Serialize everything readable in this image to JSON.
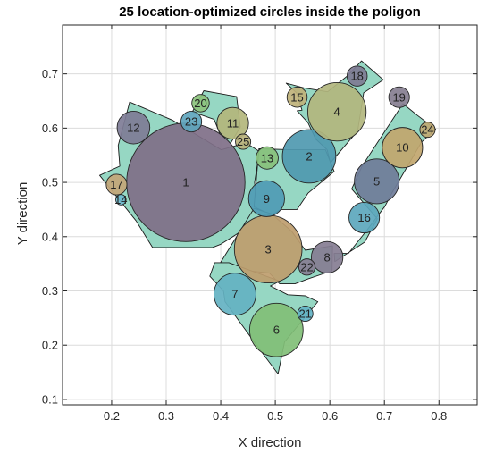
{
  "chart_data": {
    "type": "scatter",
    "title": "25 location-optimized circles inside the poligon",
    "xlabel": "X direction",
    "ylabel": "Y direction",
    "xlim": [
      0.11,
      0.87
    ],
    "ylim": [
      0.09,
      0.79
    ],
    "xticks": [
      0.2,
      0.3,
      0.4,
      0.5,
      0.6,
      0.7,
      0.8
    ],
    "yticks": [
      0.1,
      0.2,
      0.3,
      0.4,
      0.5,
      0.6,
      0.7
    ],
    "xtick_labels": [
      "0.2",
      "0.3",
      "0.4",
      "0.5",
      "0.6",
      "0.7",
      "0.8"
    ],
    "ytick_labels": [
      "0.1",
      "0.2",
      "0.3",
      "0.4",
      "0.5",
      "0.6",
      "0.7"
    ],
    "grid": true,
    "polygon_color": "#96d7c3",
    "polygons": [
      [
        [
          0.233,
          0.648
        ],
        [
          0.311,
          0.615
        ],
        [
          0.401,
          0.56
        ],
        [
          0.446,
          0.573
        ],
        [
          0.471,
          0.557
        ],
        [
          0.462,
          0.5
        ],
        [
          0.469,
          0.43
        ],
        [
          0.4,
          0.386
        ],
        [
          0.385,
          0.38
        ],
        [
          0.275,
          0.38
        ],
        [
          0.245,
          0.429
        ],
        [
          0.178,
          0.513
        ],
        [
          0.215,
          0.53
        ],
        [
          0.212,
          0.568
        ]
      ],
      [
        [
          0.369,
          0.669
        ],
        [
          0.429,
          0.658
        ],
        [
          0.436,
          0.602
        ],
        [
          0.418,
          0.572
        ],
        [
          0.398,
          0.59
        ],
        [
          0.388,
          0.616
        ],
        [
          0.348,
          0.63
        ]
      ],
      [
        [
          0.47,
          0.562
        ],
        [
          0.53,
          0.56
        ],
        [
          0.592,
          0.56
        ],
        [
          0.608,
          0.52
        ],
        [
          0.56,
          0.48
        ],
        [
          0.54,
          0.45
        ],
        [
          0.511,
          0.45
        ],
        [
          0.493,
          0.44
        ],
        [
          0.461,
          0.455
        ]
      ],
      [
        [
          0.461,
          0.452
        ],
        [
          0.493,
          0.442
        ],
        [
          0.53,
          0.41
        ],
        [
          0.555,
          0.375
        ],
        [
          0.605,
          0.383
        ],
        [
          0.604,
          0.337
        ],
        [
          0.56,
          0.322
        ],
        [
          0.536,
          0.313
        ],
        [
          0.508,
          0.313
        ],
        [
          0.489,
          0.333
        ],
        [
          0.44,
          0.338
        ],
        [
          0.415,
          0.338
        ],
        [
          0.405,
          0.343
        ],
        [
          0.399,
          0.351
        ]
      ],
      [
        [
          0.415,
          0.352
        ],
        [
          0.508,
          0.318
        ],
        [
          0.491,
          0.309
        ],
        [
          0.523,
          0.293
        ],
        [
          0.555,
          0.291
        ],
        [
          0.578,
          0.28
        ],
        [
          0.517,
          0.206
        ],
        [
          0.505,
          0.147
        ],
        [
          0.47,
          0.194
        ],
        [
          0.444,
          0.23
        ],
        [
          0.408,
          0.28
        ],
        [
          0.405,
          0.3
        ],
        [
          0.38,
          0.327
        ],
        [
          0.389,
          0.352
        ]
      ],
      [
        [
          0.52,
          0.683
        ],
        [
          0.539,
          0.665
        ],
        [
          0.549,
          0.633
        ],
        [
          0.54,
          0.632
        ],
        [
          0.56,
          0.61
        ],
        [
          0.574,
          0.58
        ],
        [
          0.595,
          0.56
        ],
        [
          0.601,
          0.536
        ],
        [
          0.651,
          0.595
        ],
        [
          0.662,
          0.665
        ],
        [
          0.698,
          0.689
        ],
        [
          0.658,
          0.724
        ],
        [
          0.633,
          0.697
        ],
        [
          0.596,
          0.667
        ],
        [
          0.553,
          0.674
        ]
      ],
      [
        [
          0.608,
          0.369
        ],
        [
          0.609,
          0.354
        ],
        [
          0.664,
          0.39
        ],
        [
          0.687,
          0.433
        ],
        [
          0.64,
          0.488
        ],
        [
          0.659,
          0.53
        ],
        [
          0.734,
          0.645
        ],
        [
          0.76,
          0.624
        ],
        [
          0.794,
          0.598
        ],
        [
          0.768,
          0.574
        ],
        [
          0.714,
          0.481
        ],
        [
          0.701,
          0.456
        ],
        [
          0.668,
          0.412
        ],
        [
          0.634,
          0.369
        ]
      ]
    ],
    "circles": [
      {
        "id": "1",
        "x": 0.336,
        "y": 0.5,
        "r": 0.1085,
        "color": "#7f6f88"
      },
      {
        "id": "2",
        "x": 0.562,
        "y": 0.548,
        "r": 0.049,
        "color": "#4f99b0"
      },
      {
        "id": "3",
        "x": 0.487,
        "y": 0.377,
        "r": 0.062,
        "color": "#be9d6e"
      },
      {
        "id": "4",
        "x": 0.613,
        "y": 0.63,
        "r": 0.0535,
        "color": "#b2b67e"
      },
      {
        "id": "5",
        "x": 0.686,
        "y": 0.502,
        "r": 0.041,
        "color": "#6f7c99"
      },
      {
        "id": "6",
        "x": 0.502,
        "y": 0.228,
        "r": 0.049,
        "color": "#81bf77"
      },
      {
        "id": "7",
        "x": 0.426,
        "y": 0.294,
        "r": 0.0385,
        "color": "#64b2c2"
      },
      {
        "id": "8",
        "x": 0.595,
        "y": 0.362,
        "r": 0.029,
        "color": "#857d92"
      },
      {
        "id": "9",
        "x": 0.484,
        "y": 0.47,
        "r": 0.033,
        "color": "#4f9bb5"
      },
      {
        "id": "10",
        "x": 0.733,
        "y": 0.564,
        "r": 0.037,
        "color": "#c1a66e"
      },
      {
        "id": "11",
        "x": 0.422,
        "y": 0.609,
        "r": 0.029,
        "color": "#b3b67c"
      },
      {
        "id": "12",
        "x": 0.24,
        "y": 0.601,
        "r": 0.03,
        "color": "#7e7c96"
      },
      {
        "id": "13",
        "x": 0.485,
        "y": 0.545,
        "r": 0.0205,
        "color": "#88c17c"
      },
      {
        "id": "14",
        "x": 0.217,
        "y": 0.468,
        "r": 0.0095,
        "color": "#6fbcd0"
      },
      {
        "id": "15",
        "x": 0.54,
        "y": 0.657,
        "r": 0.0185,
        "color": "#bfb27a"
      },
      {
        "id": "16",
        "x": 0.663,
        "y": 0.435,
        "r": 0.028,
        "color": "#5ca7bd"
      },
      {
        "id": "17",
        "x": 0.209,
        "y": 0.496,
        "r": 0.019,
        "color": "#c3a678"
      },
      {
        "id": "18",
        "x": 0.65,
        "y": 0.696,
        "r": 0.0185,
        "color": "#7e7b94"
      },
      {
        "id": "19",
        "x": 0.727,
        "y": 0.657,
        "r": 0.019,
        "color": "#857e90"
      },
      {
        "id": "20",
        "x": 0.363,
        "y": 0.646,
        "r": 0.016,
        "color": "#8cc37d"
      },
      {
        "id": "21",
        "x": 0.555,
        "y": 0.258,
        "r": 0.014,
        "color": "#63b3c5"
      },
      {
        "id": "22",
        "x": 0.558,
        "y": 0.344,
        "r": 0.015,
        "color": "#857d92"
      },
      {
        "id": "23",
        "x": 0.346,
        "y": 0.612,
        "r": 0.019,
        "color": "#5ea5bd"
      },
      {
        "id": "24",
        "x": 0.779,
        "y": 0.597,
        "r": 0.014,
        "color": "#c0a973"
      },
      {
        "id": "25",
        "x": 0.441,
        "y": 0.575,
        "r": 0.014,
        "color": "#b9b27c"
      }
    ]
  }
}
